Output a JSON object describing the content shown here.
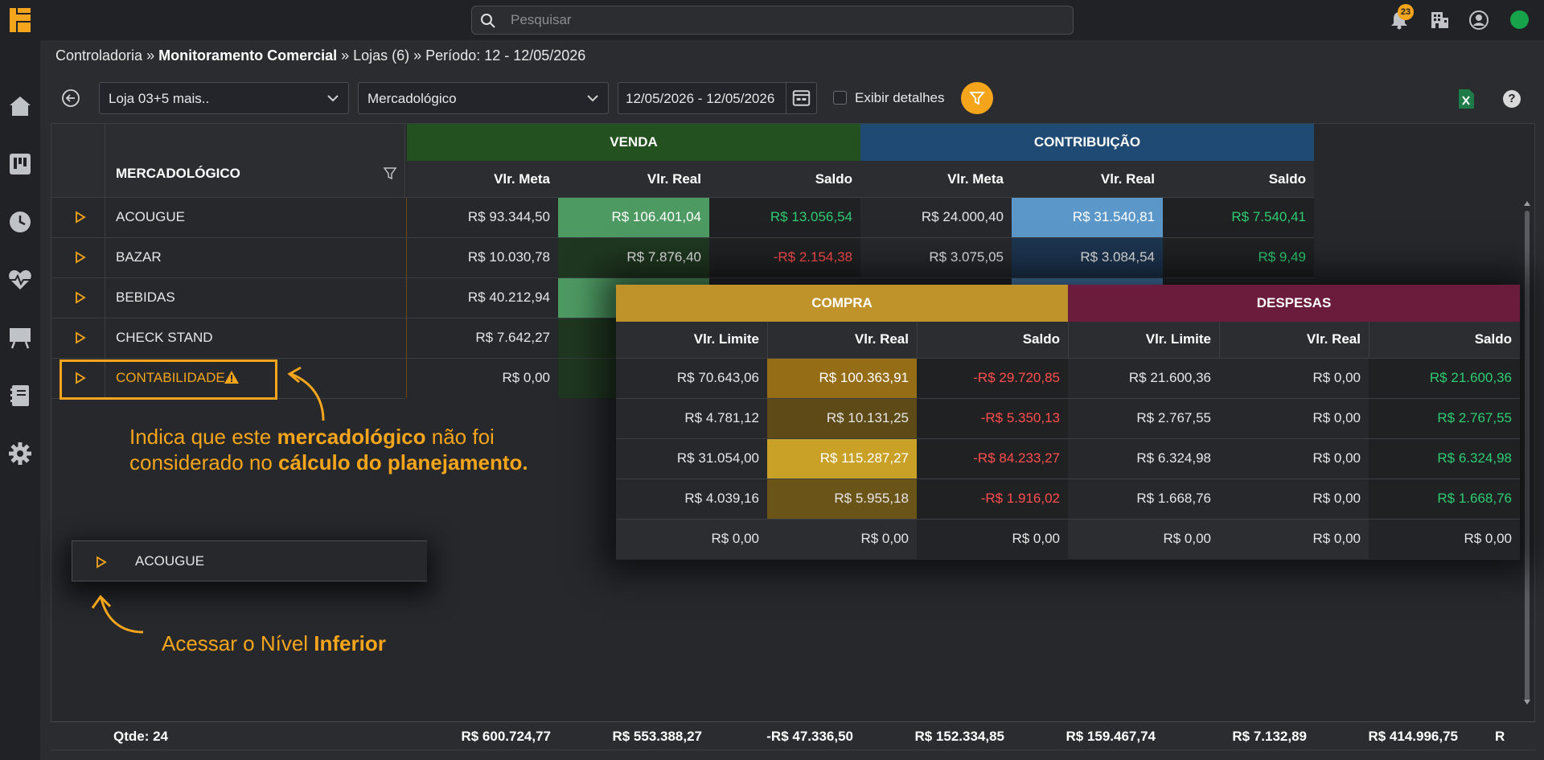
{
  "colors": {
    "accent": "#f4a51c",
    "venda_header": "#23511f",
    "contrib_header": "#1f4a73",
    "compra_header": "#c0922a",
    "despesas_header": "#6b1b3c",
    "positive": "#2ecc71",
    "negative": "#ff4d4d"
  },
  "topbar": {
    "search_placeholder": "Pesquisar",
    "notifications_count": "23",
    "icons": [
      "logo-icon",
      "search-icon",
      "bell-icon",
      "building-icon",
      "user-circle-icon",
      "status-dot"
    ]
  },
  "sidebar": {
    "items": [
      "home-icon",
      "kanban-icon",
      "clock-icon",
      "heart-pulse-icon",
      "presentation-icon",
      "book-icon",
      "gear-icon"
    ]
  },
  "breadcrumb": {
    "part1": "Controladoria » ",
    "part2": "Monitoramento Comercial",
    "part3": " » Lojas (6) » Período: 12 - 12/05/2026"
  },
  "toolbar": {
    "store_select": "Loja 03+5 mais..",
    "level_select": "Mercadológico",
    "date_range": "12/05/2026 - 12/05/2026",
    "details_label": "Exibir detalhes",
    "help_label": "?"
  },
  "table": {
    "group_venda": "VENDA",
    "group_contrib": "CONTRIBUIÇÃO",
    "col_name": "MERCADOLÓGICO",
    "col_meta": "Vlr. Meta",
    "col_real": "Vlr. Real",
    "col_saldo": "Saldo",
    "rows": [
      {
        "name": "ACOUGUE",
        "venda_meta": "R$ 93.344,50",
        "venda_real": "R$ 106.401,04",
        "venda_saldo": "R$ 13.056,54",
        "contrib_meta": "R$ 24.000,40",
        "contrib_real": "R$ 31.540,81",
        "contrib_saldo": "R$ 7.540,41"
      },
      {
        "name": "BAZAR",
        "venda_meta": "R$ 10.030,78",
        "venda_real": "R$ 7.876,40",
        "venda_saldo": "-R$ 2.154,38",
        "contrib_meta": "R$ 3.075,05",
        "contrib_real": "R$ 3.084,54",
        "contrib_saldo": "R$ 9,49"
      },
      {
        "name": "BEBIDAS",
        "venda_meta": "R$ 40.212,94"
      },
      {
        "name": "CHECK STAND",
        "venda_meta": "R$ 7.642,27"
      },
      {
        "name": "CONTABILIDADE",
        "venda_meta": "R$ 0,00"
      }
    ]
  },
  "overlay": {
    "group_compra": "COMPRA",
    "group_despesas": "DESPESAS",
    "col_limite": "Vlr. Limite",
    "col_real": "Vlr. Real",
    "col_saldo": "Saldo",
    "rows": [
      {
        "c_lim": "R$ 70.643,06",
        "c_real": "R$ 100.363,91",
        "c_saldo": "-R$ 29.720,85",
        "d_lim": "R$ 21.600,36",
        "d_real": "R$ 0,00",
        "d_saldo": "R$ 21.600,36"
      },
      {
        "c_lim": "R$ 4.781,12",
        "c_real": "R$ 10.131,25",
        "c_saldo": "-R$ 5.350,13",
        "d_lim": "R$ 2.767,55",
        "d_real": "R$ 0,00",
        "d_saldo": "R$ 2.767,55"
      },
      {
        "c_lim": "R$ 31.054,00",
        "c_real": "R$ 115.287,27",
        "c_saldo": "-R$ 84.233,27",
        "d_lim": "R$ 6.324,98",
        "d_real": "R$ 0,00",
        "d_saldo": "R$ 6.324,98"
      },
      {
        "c_lim": "R$ 4.039,16",
        "c_real": "R$ 5.955,18",
        "c_saldo": "-R$ 1.916,02",
        "d_lim": "R$ 1.668,76",
        "d_real": "R$ 0,00",
        "d_saldo": "R$ 1.668,76"
      },
      {
        "c_lim": "R$ 0,00",
        "c_real": "R$ 0,00",
        "c_saldo": "R$ 0,00",
        "d_lim": "R$ 0,00",
        "d_real": "R$ 0,00",
        "d_saldo": "R$ 0,00"
      }
    ]
  },
  "annotations": {
    "note1_a": "Indica que este ",
    "note1_b": "mercadológico",
    "note1_c": " não foi",
    "note1_d": "considerado no ",
    "note1_e": "cálculo do planejamento.",
    "mini_row_label": "ACOUGUE",
    "note2_a": "Acessar o Nível ",
    "note2_b": "Inferior"
  },
  "footer": {
    "qtde": "Qtde: 24",
    "v1": "R$ 600.724,77",
    "v2": "R$ 553.388,27",
    "v3": "-R$ 47.336,50",
    "v4": "R$ 152.334,85",
    "v5": "R$ 159.467,74",
    "v6": "R$ 7.132,89",
    "v7": "R$ 414.996,75",
    "v8": "R"
  }
}
